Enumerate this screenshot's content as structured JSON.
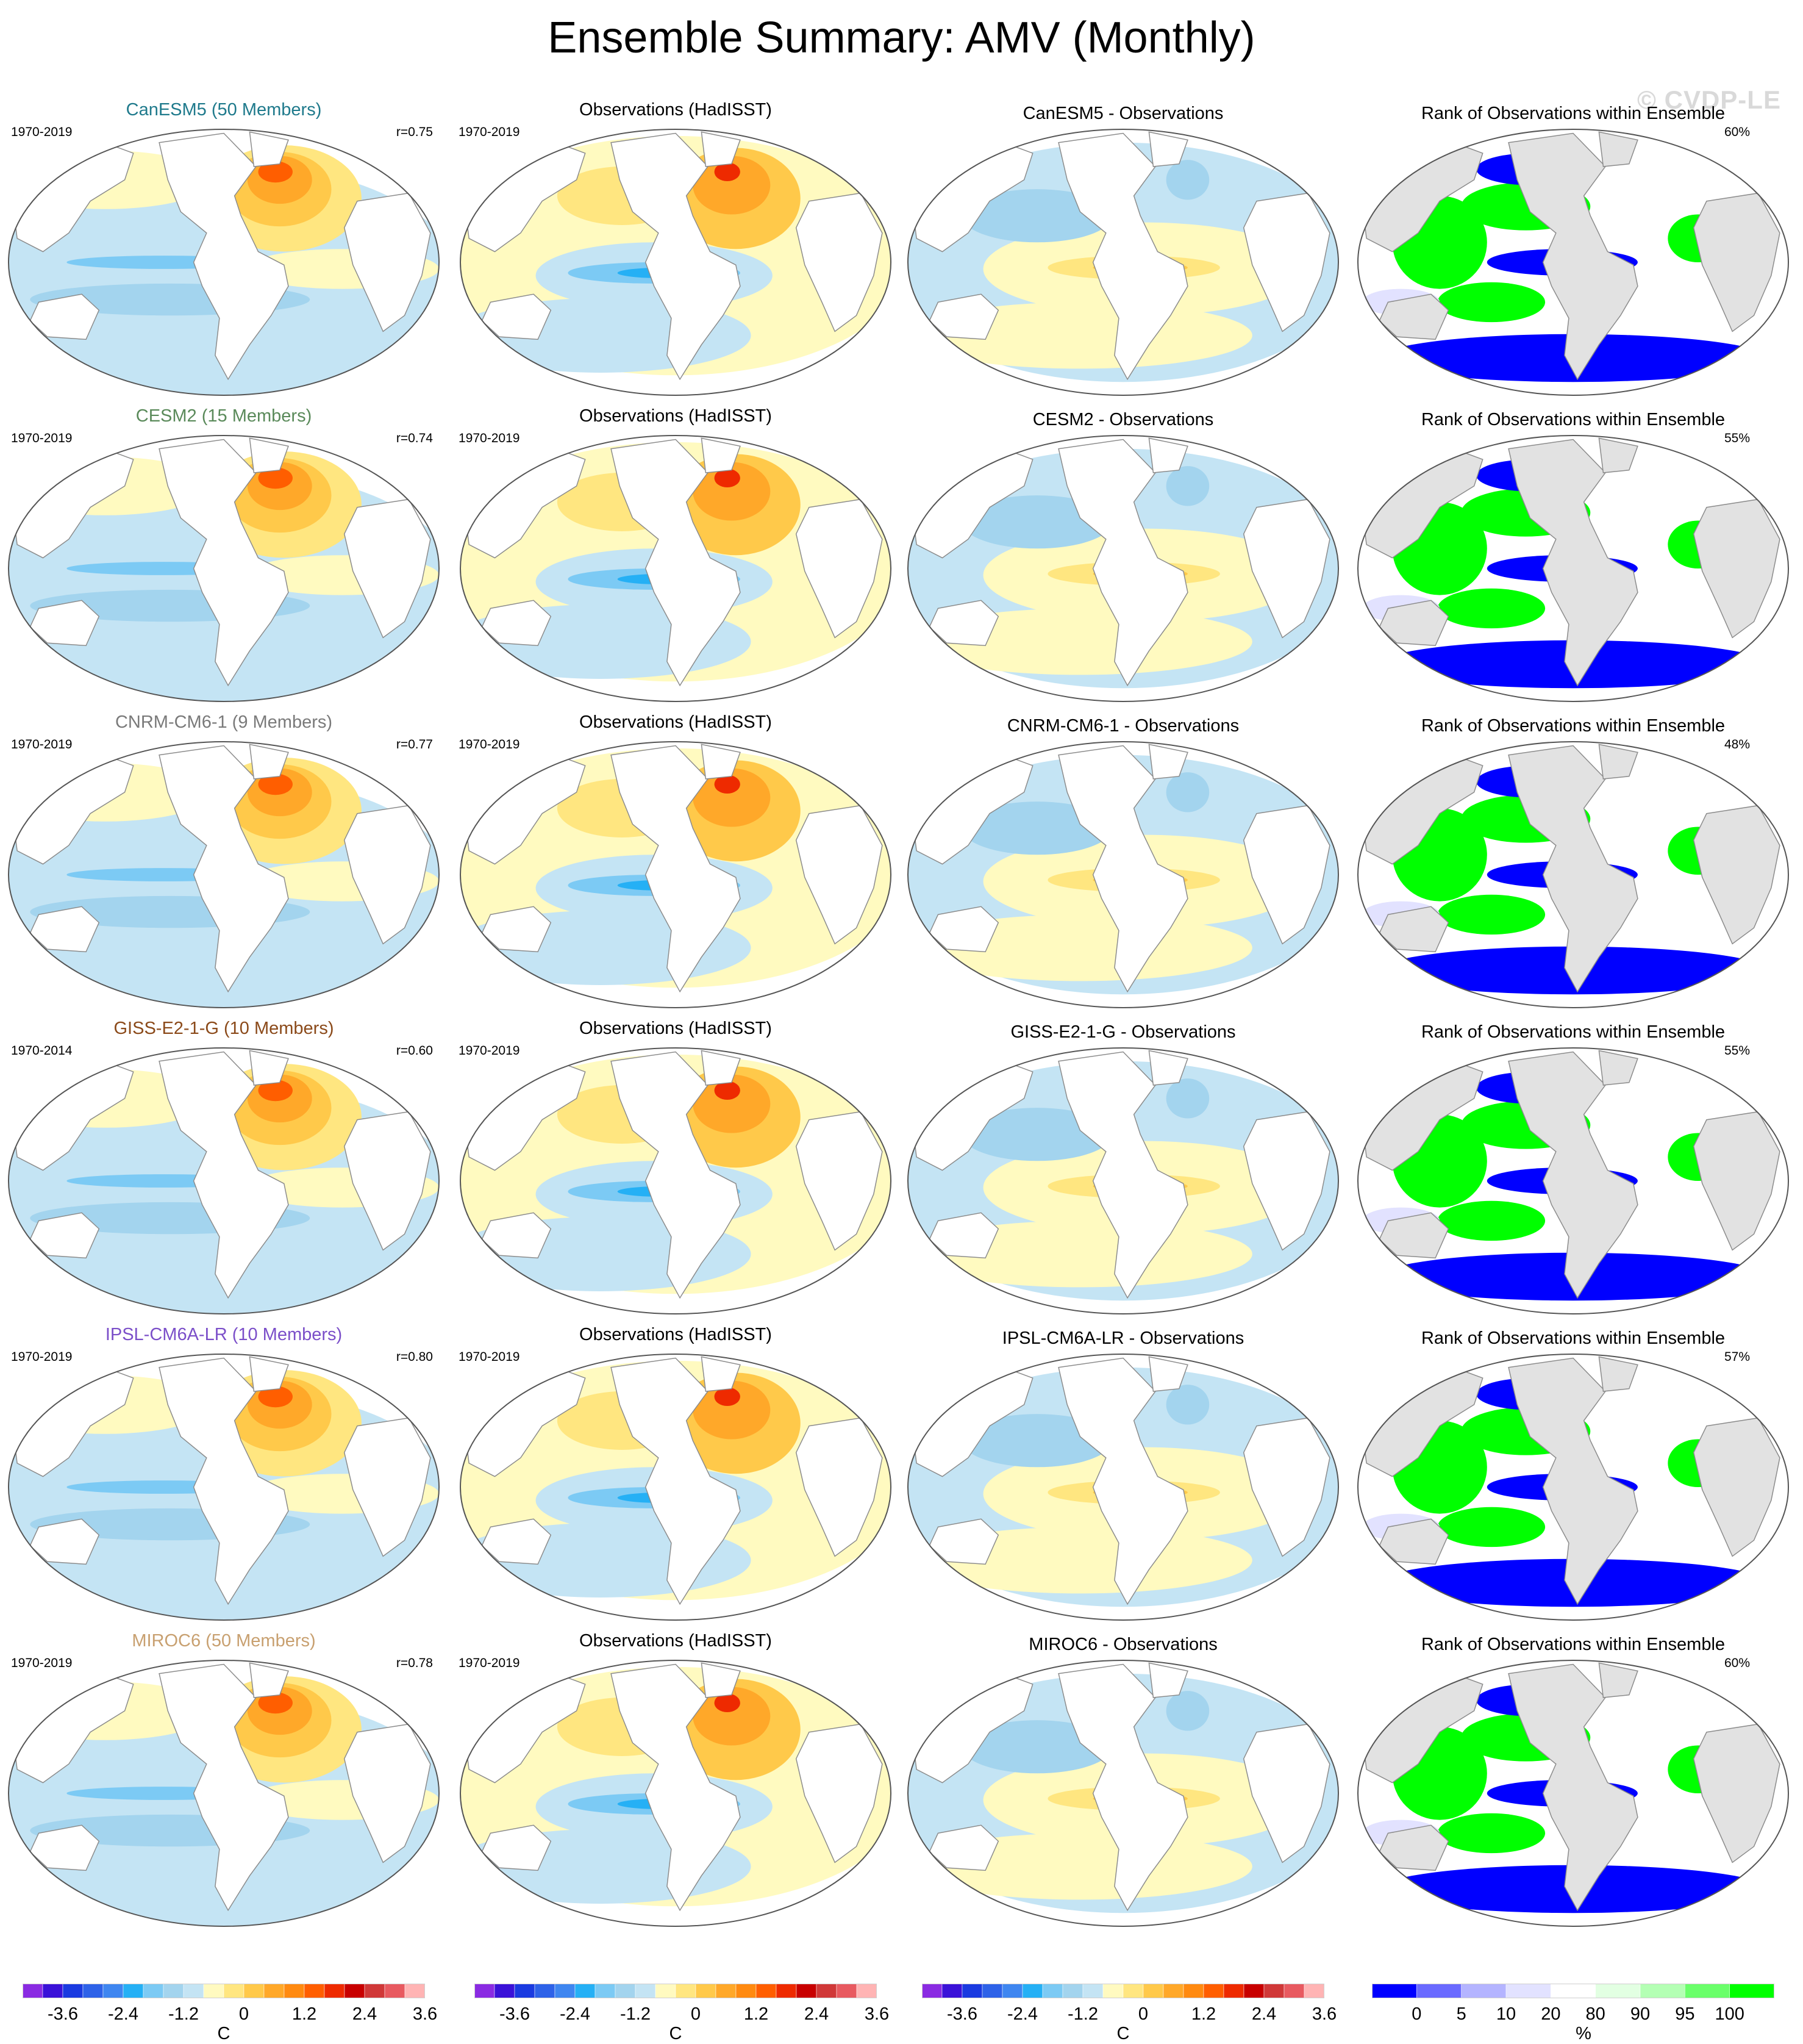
{
  "title": "Ensemble Summary: AMV (Monthly)",
  "watermark": "© CVDP-LE",
  "colors": {
    "land": "#ffffff",
    "land_rank": "#e2e2e2",
    "coast": "#8c8c8c"
  },
  "rows": [
    {
      "model_title": "CanESM5 (50 Members)",
      "model_title_color": "#1f7a8c",
      "model_period": "1970-2019",
      "pattern_correlation": "r=0.75",
      "obs_title": "Observations (HadISST)",
      "obs_period": "1970-2019",
      "diff_title": "CanESM5 - Observations",
      "rank_title": "Rank of Observations within Ensemble",
      "rank_percent": "60%"
    },
    {
      "model_title": "CESM2 (15 Members)",
      "model_title_color": "#5a8a5a",
      "model_period": "1970-2019",
      "pattern_correlation": "r=0.74",
      "obs_title": "Observations (HadISST)",
      "obs_period": "1970-2019",
      "diff_title": "CESM2 - Observations",
      "rank_title": "Rank of Observations within Ensemble",
      "rank_percent": "55%"
    },
    {
      "model_title": "CNRM-CM6-1 (9 Members)",
      "model_title_color": "#7a7a7a",
      "model_period": "1970-2019",
      "pattern_correlation": "r=0.77",
      "obs_title": "Observations (HadISST)",
      "obs_period": "1970-2019",
      "diff_title": "CNRM-CM6-1 - Observations",
      "rank_title": "Rank of Observations within Ensemble",
      "rank_percent": "48%"
    },
    {
      "model_title": "GISS-E2-1-G (10 Members)",
      "model_title_color": "#8b4a1a",
      "model_period": "1970-2014",
      "pattern_correlation": "r=0.60",
      "obs_title": "Observations (HadISST)",
      "obs_period": "1970-2019",
      "diff_title": "GISS-E2-1-G - Observations",
      "rank_title": "Rank of Observations within Ensemble",
      "rank_percent": "55%"
    },
    {
      "model_title": "IPSL-CM6A-LR (10 Members)",
      "model_title_color": "#7b4fc9",
      "model_period": "1970-2019",
      "pattern_correlation": "r=0.80",
      "obs_title": "Observations (HadISST)",
      "obs_period": "1970-2019",
      "diff_title": "IPSL-CM6A-LR - Observations",
      "rank_title": "Rank of Observations within Ensemble",
      "rank_percent": "57%"
    },
    {
      "model_title": "MIROC6 (50 Members)",
      "model_title_color": "#c8a070",
      "model_period": "1970-2019",
      "pattern_correlation": "r=0.78",
      "obs_title": "Observations (HadISST)",
      "obs_period": "1970-2019",
      "diff_title": "MIROC6 - Observations",
      "rank_title": "Rank of Observations within Ensemble",
      "rank_percent": "60%"
    }
  ],
  "sst_colorbar": {
    "unit": "C",
    "tick_labels": [
      "-3.6",
      "-2.4",
      "-1.2",
      "0",
      "1.2",
      "2.4",
      "3.6"
    ],
    "colors": [
      "#8a2be2",
      "#3a12d8",
      "#1a3ae0",
      "#2e62e8",
      "#3f86f0",
      "#25b0f5",
      "#7ccaf4",
      "#a3d4ee",
      "#c4e4f4",
      "#fffac0",
      "#ffe680",
      "#ffc94a",
      "#ffa829",
      "#ff8a10",
      "#ff5e00",
      "#ee2a00",
      "#c80000",
      "#d03838",
      "#e85a60",
      "#ffb4b4"
    ]
  },
  "rank_colorbar": {
    "unit": "%",
    "tick_labels": [
      "0",
      "5",
      "10",
      "20",
      "80",
      "90",
      "95",
      "100"
    ],
    "colors": [
      "#0000ff",
      "#6a6aff",
      "#b4b4ff",
      "#e2e2ff",
      "#ffffff",
      "#e2ffe2",
      "#b4ffb4",
      "#6aff6a",
      "#00ff00"
    ]
  }
}
